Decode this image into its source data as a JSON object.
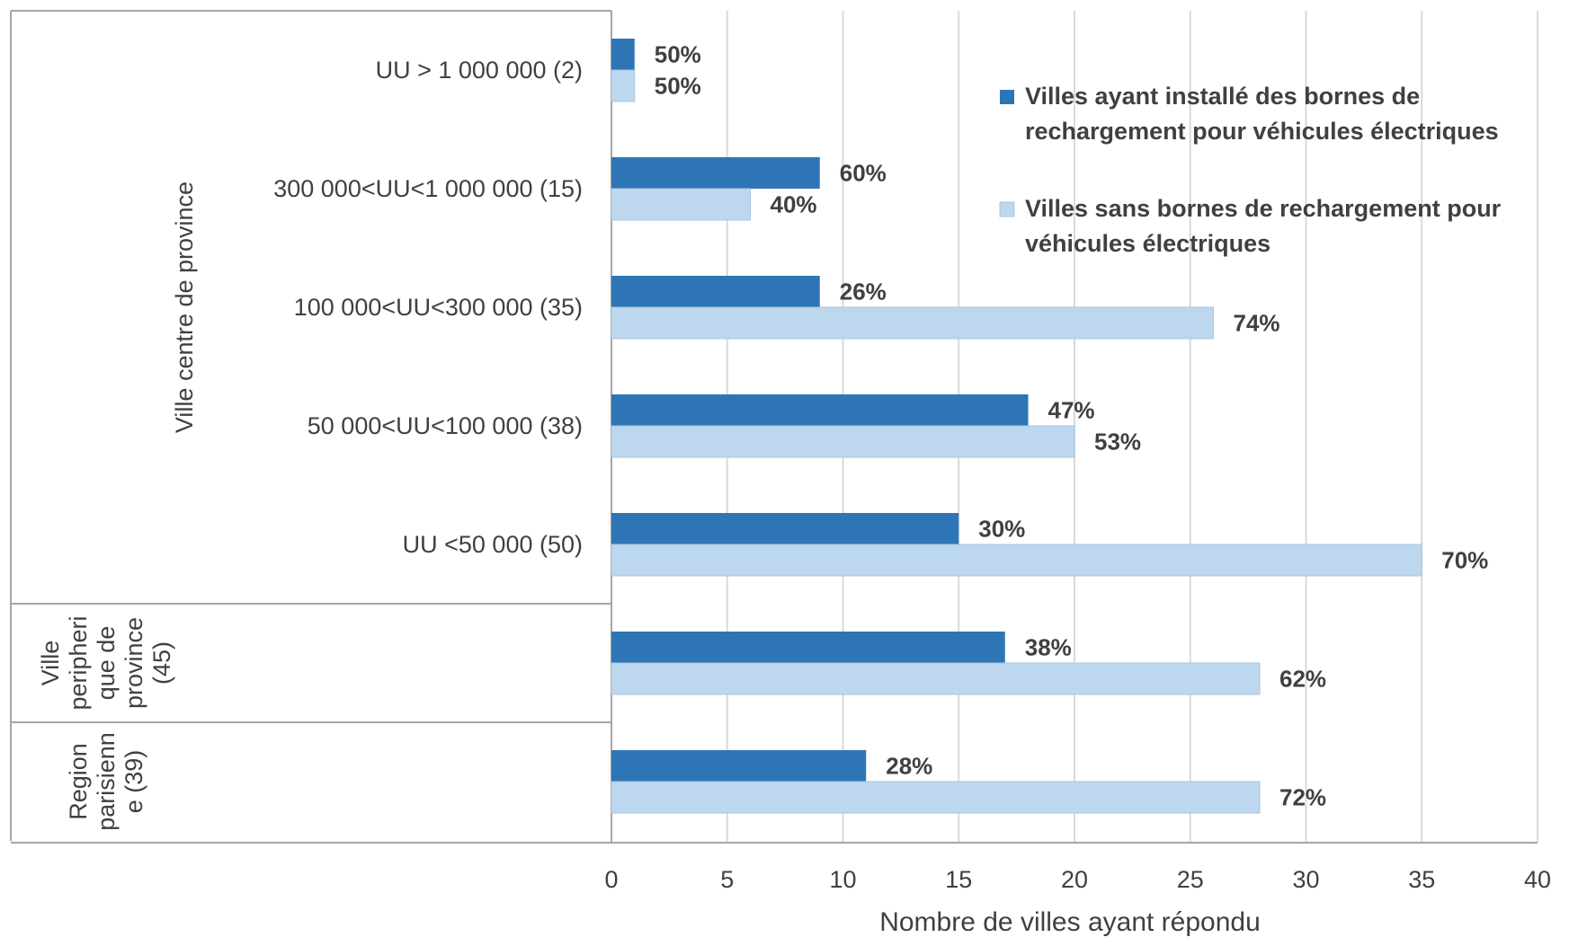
{
  "chart_data": {
    "type": "bar",
    "orientation": "horizontal",
    "xlabel": "Nombre de villes ayant répondu",
    "xlim": [
      0,
      40
    ],
    "xticks": [
      0,
      5,
      10,
      15,
      20,
      25,
      30,
      35,
      40
    ],
    "grid": true,
    "legend_position": "top-right",
    "categories": [
      "UU > 1 000 000 (2)",
      "300 000<UU<1 000 000 (15)",
      "100 000<UU<300 000 (35)",
      "50 000<UU<100 000 (38)",
      "UU <50 000 (50)",
      "",
      ""
    ],
    "groups": [
      {
        "label": "Ville centre de province",
        "lines": [
          "Ville centre de province"
        ],
        "start": 0,
        "end": 4
      },
      {
        "label": "Ville peripherique de province (45)",
        "lines": [
          "Ville",
          "peripheri",
          "que de",
          "province",
          "(45)"
        ],
        "start": 5,
        "end": 5
      },
      {
        "label": "Region parisienne (39)",
        "lines": [
          "Region",
          "parisienn",
          "e (39)"
        ],
        "start": 6,
        "end": 6
      }
    ],
    "series": [
      {
        "name": "Villes ayant installé des bornes de rechargement  pour véhicules électriques",
        "legend_lines": [
          "Villes ayant installé des bornes de",
          "rechargement  pour véhicules électriques"
        ],
        "color": "#2e75b6",
        "values": [
          1,
          9,
          9,
          18,
          15,
          17,
          11
        ],
        "labels": [
          "50%",
          "60%",
          "26%",
          "47%",
          "30%",
          "38%",
          "28%"
        ]
      },
      {
        "name": "Villes  sans bornes de rechargement pour véhicules électriques",
        "legend_lines": [
          "Villes  sans bornes de rechargement pour",
          "véhicules électriques"
        ],
        "color": "#bdd7ee",
        "values": [
          1,
          6,
          26,
          20,
          35,
          28,
          28
        ],
        "labels": [
          "50%",
          "40%",
          "74%",
          "53%",
          "70%",
          "62%",
          "72%"
        ]
      }
    ]
  }
}
